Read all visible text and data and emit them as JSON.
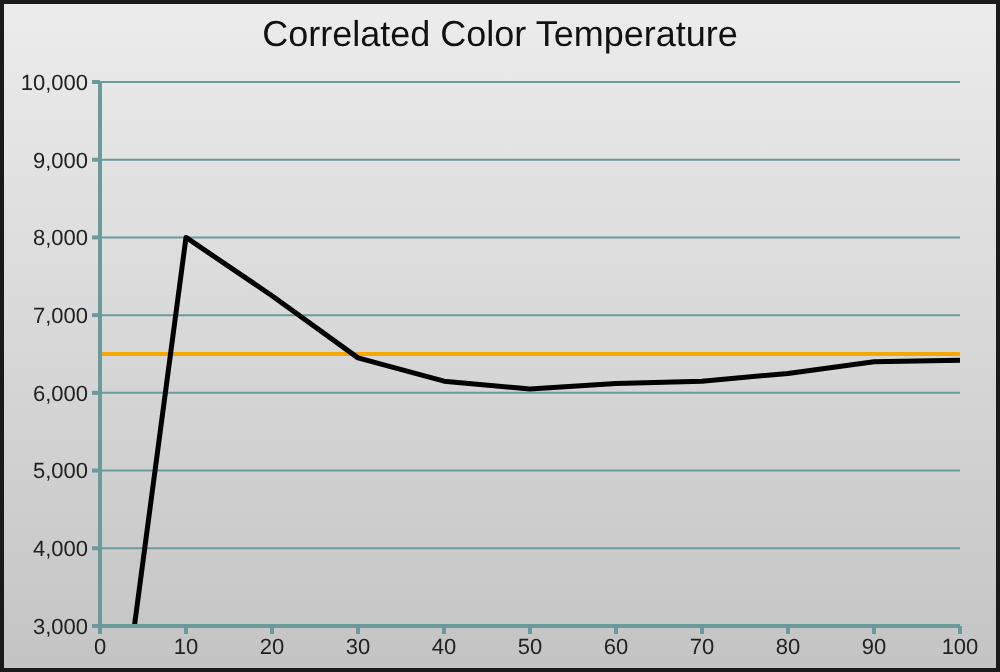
{
  "chart_data": {
    "type": "line",
    "title": "Correlated Color Temperature",
    "x": [
      4,
      10,
      20,
      30,
      40,
      50,
      60,
      70,
      80,
      90,
      100
    ],
    "series": [
      {
        "color": "#000000",
        "values": [
          3000,
          8000,
          7250,
          6450,
          6150,
          6050,
          6120,
          6150,
          6250,
          6400,
          6420
        ]
      }
    ],
    "xlim": [
      0,
      100
    ],
    "xticks": [
      0,
      10,
      20,
      30,
      40,
      50,
      60,
      70,
      80,
      90,
      100
    ],
    "ylim": [
      3000,
      10000
    ],
    "yticks": [
      {
        "value": 3000,
        "label": "3,000"
      },
      {
        "value": 4000,
        "label": "4,000"
      },
      {
        "value": 5000,
        "label": "5,000"
      },
      {
        "value": 6000,
        "label": "6,000"
      },
      {
        "value": 7000,
        "label": "7,000"
      },
      {
        "value": 8000,
        "label": "8,000"
      },
      {
        "value": 9000,
        "label": "9,000"
      },
      {
        "value": 10000,
        "label": "10,000"
      }
    ],
    "grid": "y",
    "marker": "none",
    "line_style": "solid",
    "ref_lines": [
      {
        "axis": "y",
        "value": 6500,
        "color": "#f5a800"
      }
    ]
  }
}
